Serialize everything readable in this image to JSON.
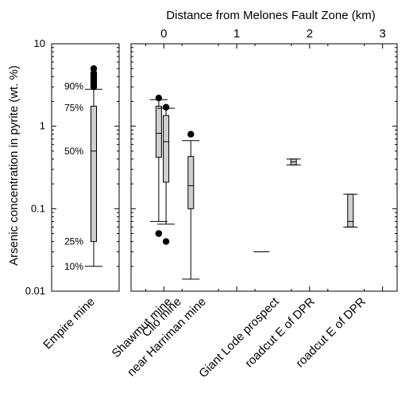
{
  "chart_data": {
    "type": "box",
    "title": "Distance from Melones Fault Zone (km)",
    "ylabel": "Arsenic concentration in pyrite (wt. %)",
    "yscale": "log",
    "ylim": [
      0.01,
      10
    ],
    "yticks": [
      "0.01",
      "0.1",
      "1",
      "10"
    ],
    "top_axis_ticks": [
      "0",
      "1",
      "2",
      "3"
    ],
    "top_axis_range_km": [
      -0.45,
      3.2
    ],
    "percentile_labels": [
      "90%",
      "75%",
      "50%",
      "25%",
      "10%"
    ],
    "panels": [
      {
        "name": "left",
        "sites": [
          {
            "label": "Empire mine",
            "p10": 0.02,
            "p25": 0.04,
            "median": 0.5,
            "p75": 1.75,
            "p90": 2.8,
            "outliers": [
              3.0,
              3.2,
              3.4,
              3.6,
              3.8,
              4.0,
              4.2,
              4.4,
              5.0
            ]
          }
        ]
      },
      {
        "name": "right",
        "sites": [
          {
            "label": "Shawmut mine",
            "distance_km": -0.07,
            "p10": 0.07,
            "p25": 0.42,
            "median": 0.82,
            "p75": 1.75,
            "p90": 2.1,
            "outliers": [
              2.2,
              0.05,
              0.05
            ]
          },
          {
            "label": "Clio mine",
            "distance_km": 0.03,
            "p10": 0.065,
            "p25": 0.21,
            "median": 0.65,
            "p75": 1.35,
            "p90": 1.65,
            "outliers": [
              1.7,
              0.04
            ]
          },
          {
            "label": "near Harriman mine",
            "distance_km": 0.37,
            "p10": 0.014,
            "p25": 0.1,
            "median": 0.19,
            "p75": 0.43,
            "p90": 0.67,
            "outliers": [
              0.8
            ]
          },
          {
            "label": "Giant Lode prospect",
            "distance_km": 1.34,
            "median": 0.03
          },
          {
            "label": "roadcut E of DPR",
            "distance_km": 1.78,
            "min": 0.34,
            "max": 0.4,
            "median": 0.37
          },
          {
            "label": "roadcut E of DPR",
            "distance_km": 2.56,
            "min": 0.06,
            "max": 0.15,
            "median": 0.07
          }
        ]
      }
    ]
  }
}
